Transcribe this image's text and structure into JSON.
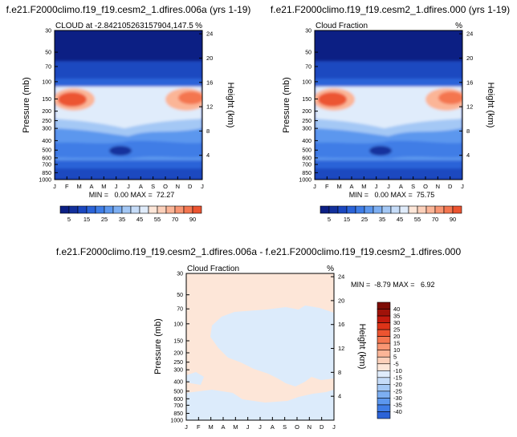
{
  "colors": {
    "negative_scale": [
      "#0c1f84",
      "#13309c",
      "#1c48c0",
      "#2b63d8",
      "#3f7de6",
      "#5c97ee",
      "#7daff2",
      "#a4c8f5",
      "#c6dcf8",
      "#e0ecfb"
    ],
    "positive_scale": [
      "#fde6d8",
      "#fcd0ba",
      "#fbb597",
      "#f99673",
      "#f47650",
      "#ec5430",
      "#dd3318",
      "#c21a0e",
      "#a01209",
      "#7e0c05"
    ],
    "diff_background": "#fde6d8",
    "diff_patch": "#dcebfb"
  },
  "shared": {
    "y_axis_label": "Pressure (mb)",
    "right_axis_label": "Height (km)",
    "units": "%",
    "month_ticks": [
      "J",
      "F",
      "M",
      "A",
      "M",
      "J",
      "J",
      "A",
      "S",
      "O",
      "N",
      "D",
      "J"
    ],
    "pressure_ticks": [
      "30",
      "50",
      "70",
      "100",
      "150",
      "200",
      "250",
      "300",
      "400",
      "500",
      "600",
      "700",
      "850",
      "1000"
    ],
    "height_ticks": [
      "24",
      "20",
      "16",
      "12",
      "8",
      "4"
    ]
  },
  "chart_data": [
    {
      "type": "heatmap",
      "case_title": "f.e21.F2000climo.f19_f19.cesm2_1.dfires.006a (yrs 1-19)",
      "title": "CLOUD at -2.842105263157904,147.5",
      "units": "%",
      "xlabel": "",
      "ylabel": "Pressure (mb)",
      "right_label": "Height (km)",
      "stats": {
        "text": "MIN =   0.00 MAX =  72.27",
        "min": 0.0,
        "max": 72.27
      },
      "colorbar_labels": [
        "5",
        "15",
        "25",
        "35",
        "45",
        "55",
        "70",
        "90"
      ],
      "colorbar_levels": [
        0,
        5,
        10,
        15,
        20,
        25,
        30,
        35,
        40,
        45,
        50,
        55,
        60,
        70,
        80,
        90,
        100
      ]
    },
    {
      "type": "heatmap",
      "case_title": "f.e21.F2000climo.f19_f19.cesm2_1.dfires.000 (yrs 1-19)",
      "title": "Cloud Fraction",
      "units": "%",
      "xlabel": "",
      "ylabel": "Pressure (mb)",
      "right_label": "Height (km)",
      "stats": {
        "text": "MIN =   0.00 MAX =  75.75",
        "min": 0.0,
        "max": 75.75
      },
      "colorbar_labels": [
        "5",
        "15",
        "25",
        "35",
        "45",
        "55",
        "70",
        "90"
      ],
      "colorbar_levels": [
        0,
        5,
        10,
        15,
        20,
        25,
        30,
        35,
        40,
        45,
        50,
        55,
        60,
        70,
        80,
        90,
        100
      ]
    },
    {
      "type": "heatmap",
      "case_title": "f.e21.F2000climo.f19_f19.cesm2_1.dfires.006a - f.e21.F2000climo.f19_f19.cesm2_1.dfires.000",
      "title": "Cloud Fraction",
      "units": "%",
      "xlabel": "",
      "ylabel": "Pressure (mb)",
      "right_label": "Height (km)",
      "stats": {
        "text": "MIN =  -8.79 MAX =   6.92",
        "min": -8.79,
        "max": 6.92
      },
      "colorbar_labels": [
        "40",
        "35",
        "30",
        "25",
        "20",
        "15",
        "10",
        "5",
        "-5",
        "-10",
        "-15",
        "-20",
        "-25",
        "-30",
        "-35",
        "-40"
      ]
    }
  ]
}
